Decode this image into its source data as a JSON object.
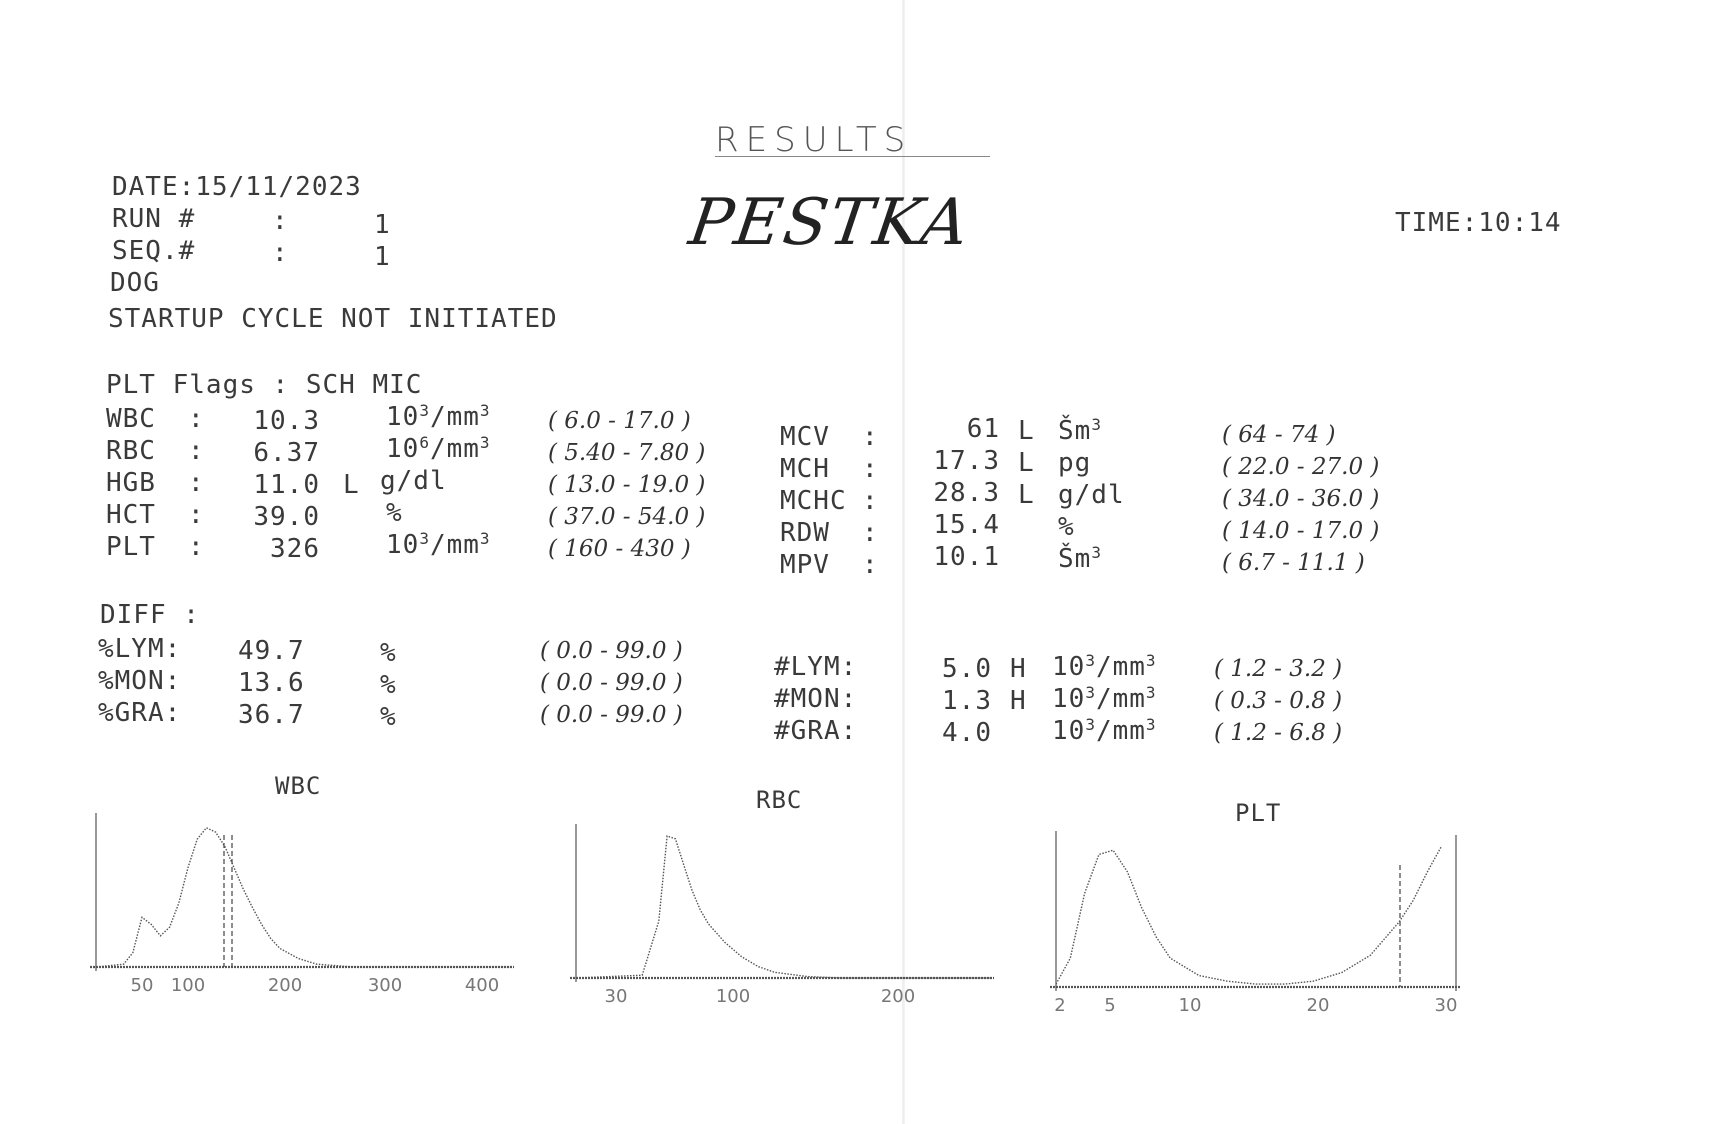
{
  "header": {
    "title": "RESULTS",
    "patient_name": "PESTKA",
    "date": "DATE:15/11/2023",
    "time": "TIME:10:14",
    "run_label": "RUN #",
    "run_value": "1",
    "seq_label": "SEQ.#",
    "seq_value": "1",
    "species": "DOG",
    "startup": "STARTUP CYCLE NOT INITIATED"
  },
  "plt_flags": "PLT Flags : SCH MIC",
  "left_params": [
    {
      "name": "WBC",
      "value": "10.3",
      "flag": "",
      "unit_base": "10",
      "unit_exp": "3",
      "unit_rest": "/mm",
      "unit_exp2": "3",
      "range": "( 6.0 - 17.0 )"
    },
    {
      "name": "RBC",
      "value": "6.37",
      "flag": "",
      "unit_base": "10",
      "unit_exp": "6",
      "unit_rest": "/mm",
      "unit_exp2": "3",
      "range": "( 5.40 - 7.80 )"
    },
    {
      "name": "HGB",
      "value": "11.0",
      "flag": "L",
      "unit_base": "g/dl",
      "unit_exp": "",
      "unit_rest": "",
      "unit_exp2": "",
      "range": "( 13.0 - 19.0 )"
    },
    {
      "name": "HCT",
      "value": "39.0",
      "flag": "",
      "unit_base": "%",
      "unit_exp": "",
      "unit_rest": "",
      "unit_exp2": "",
      "range": "( 37.0 - 54.0 )"
    },
    {
      "name": "PLT",
      "value": "326",
      "flag": "",
      "unit_base": "10",
      "unit_exp": "3",
      "unit_rest": "/mm",
      "unit_exp2": "3",
      "range": "( 160 - 430 )"
    }
  ],
  "right_params": [
    {
      "name": "MCV",
      "value": "61",
      "flag": "L",
      "unit": "Šm",
      "unit_exp": "3",
      "range": "( 64 - 74 )"
    },
    {
      "name": "MCH",
      "value": "17.3",
      "flag": "L",
      "unit": "pg",
      "unit_exp": "",
      "range": "( 22.0 - 27.0 )"
    },
    {
      "name": "MCHC",
      "value": "28.3",
      "flag": "L",
      "unit": "g/dl",
      "unit_exp": "",
      "range": "( 34.0 - 36.0 )"
    },
    {
      "name": "RDW",
      "value": "15.4",
      "flag": "",
      "unit": "%",
      "unit_exp": "",
      "range": "( 14.0 - 17.0 )"
    },
    {
      "name": "MPV",
      "value": "10.1",
      "flag": "",
      "unit": "Šm",
      "unit_exp": "3",
      "range": "( 6.7 - 11.1 )"
    }
  ],
  "diff_label": "DIFF :",
  "diff_pct": [
    {
      "name": "%LYM:",
      "value": "49.7",
      "unit": "%",
      "range": "( 0.0 - 99.0 )"
    },
    {
      "name": "%MON:",
      "value": "13.6",
      "unit": "%",
      "range": "( 0.0 - 99.0 )"
    },
    {
      "name": "%GRA:",
      "value": "36.7",
      "unit": "%",
      "range": "( 0.0 - 99.0 )"
    }
  ],
  "diff_abs": [
    {
      "name": "#LYM:",
      "value": "5.0",
      "flag": "H",
      "range": "( 1.2 - 3.2 )"
    },
    {
      "name": "#MON:",
      "value": "1.3",
      "flag": "H",
      "range": "( 0.3 - 0.8 )"
    },
    {
      "name": "#GRA:",
      "value": "4.0",
      "flag": "",
      "range": "( 1.2 - 6.8 )"
    }
  ],
  "abs_unit": {
    "base": "10",
    "exp": "3",
    "rest": "/mm",
    "exp2": "3"
  },
  "chart_data": [
    {
      "type": "area",
      "title": "WBC",
      "xlim": [
        0,
        450
      ],
      "xticks": [
        "50",
        "100",
        "200",
        "300",
        "400"
      ],
      "x": [
        0,
        30,
        40,
        50,
        60,
        70,
        80,
        90,
        100,
        110,
        120,
        130,
        140,
        150,
        160,
        170,
        180,
        190,
        200,
        220,
        240,
        260,
        280,
        300,
        450
      ],
      "y": [
        0,
        0.02,
        0.1,
        0.35,
        0.3,
        0.22,
        0.28,
        0.45,
        0.7,
        0.9,
        0.98,
        0.95,
        0.85,
        0.7,
        0.55,
        0.42,
        0.3,
        0.2,
        0.13,
        0.06,
        0.02,
        0.01,
        0,
        0,
        0
      ]
    },
    {
      "type": "area",
      "title": "RBC",
      "xlim": [
        0,
        250
      ],
      "xticks": [
        "30",
        "100",
        "200"
      ],
      "x": [
        0,
        40,
        50,
        55,
        60,
        65,
        70,
        75,
        80,
        90,
        100,
        110,
        120,
        140,
        160,
        250
      ],
      "y": [
        0,
        0.02,
        0.4,
        1.0,
        0.98,
        0.8,
        0.62,
        0.48,
        0.38,
        0.25,
        0.15,
        0.08,
        0.04,
        0.01,
        0,
        0
      ]
    },
    {
      "type": "area",
      "title": "PLT",
      "xlim": [
        2,
        30
      ],
      "xticks": [
        "2",
        "5",
        "10",
        "20",
        "30"
      ],
      "x": [
        2,
        3,
        4,
        5,
        6,
        7,
        8,
        9,
        10,
        12,
        14,
        16,
        18,
        20,
        22,
        24,
        26,
        27,
        28,
        29
      ],
      "y": [
        0.02,
        0.2,
        0.65,
        0.92,
        0.95,
        0.8,
        0.55,
        0.35,
        0.2,
        0.08,
        0.04,
        0.02,
        0.02,
        0.04,
        0.1,
        0.22,
        0.45,
        0.6,
        0.8,
        0.98
      ]
    }
  ]
}
